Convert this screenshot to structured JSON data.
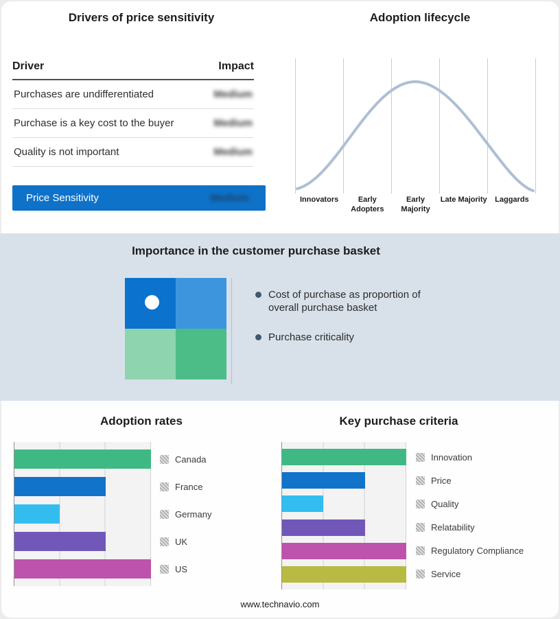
{
  "drivers": {
    "title": "Drivers of price sensitivity",
    "columns": {
      "driver": "Driver",
      "impact": "Impact"
    },
    "rows": [
      {
        "driver": "Purchases are undifferentiated",
        "impact": "Medium"
      },
      {
        "driver": "Purchase is a key cost to the buyer",
        "impact": "Medium"
      },
      {
        "driver": "Quality is not important",
        "impact": "Medium"
      }
    ],
    "highlight_row": {
      "driver": "Price Sensitivity",
      "impact": "Medium"
    },
    "highlight_color": "#0e72c8"
  },
  "lifecycle": {
    "title": "Adoption lifecycle",
    "stages": [
      "Innovators",
      "Early Adopters",
      "Early Majority",
      "Late Majority",
      "Laggards"
    ],
    "curve_color": "#aebfd5"
  },
  "basket": {
    "title": "Importance in the customer purchase basket",
    "bullets": [
      "Cost of purchase as proportion of overall purchase basket",
      "Purchase criticality"
    ],
    "matrix_colors": {
      "top_left": "#0b72ce",
      "top_right": "#3d95de",
      "bottom_left": "#8ed4ae",
      "bottom_right": "#4dbd88"
    }
  },
  "chart_data": [
    {
      "type": "bar",
      "title": "Adoption rates",
      "orientation": "horizontal",
      "categories": [
        "Canada",
        "France",
        "Germany",
        "UK",
        "US"
      ],
      "values": [
        3,
        2,
        1,
        2,
        3
      ],
      "xlim": [
        0,
        3
      ],
      "grid": true,
      "legend_position": "right",
      "colors": [
        "#3fb983",
        "#1173c9",
        "#33bdef",
        "#7158b8",
        "#bd53ad"
      ]
    },
    {
      "type": "bar",
      "title": "Key purchase criteria",
      "orientation": "horizontal",
      "categories": [
        "Innovation",
        "Price",
        "Quality",
        "Relatability",
        "Regulatory Compliance",
        "Service"
      ],
      "values": [
        3,
        2,
        1,
        2,
        3,
        3
      ],
      "xlim": [
        0,
        3
      ],
      "grid": true,
      "legend_position": "right",
      "colors": [
        "#3fb983",
        "#1173c9",
        "#33bdef",
        "#7158b8",
        "#bd53ad",
        "#b9ba41"
      ]
    }
  ],
  "footer": {
    "url": "www.technavio.com"
  }
}
